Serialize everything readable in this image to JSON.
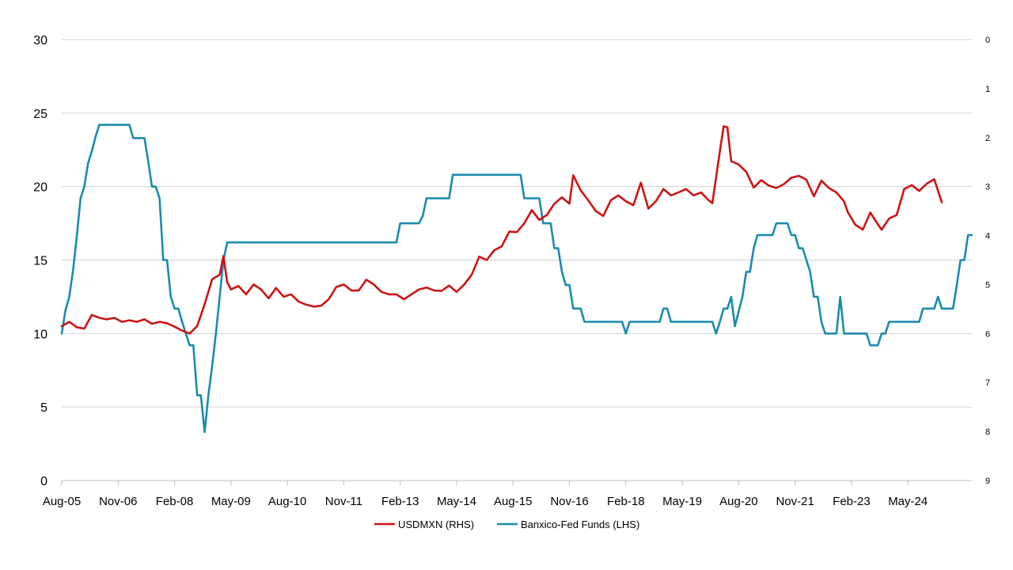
{
  "chart_data": {
    "type": "line",
    "title": "",
    "xlabel": "",
    "ylabel_left": "",
    "ylabel_right": "",
    "x_tick_labels": [
      "Aug-05",
      "Nov-06",
      "Feb-08",
      "May-09",
      "Aug-10",
      "Nov-11",
      "Feb-13",
      "May-14",
      "Aug-15",
      "Nov-16",
      "Feb-18",
      "May-19",
      "Aug-20",
      "Nov-21",
      "Feb-23",
      "May-24"
    ],
    "y_left": {
      "range": [
        0,
        30
      ],
      "ticks": [
        "0",
        "5",
        "10",
        "15",
        "20",
        "25",
        "30"
      ]
    },
    "y_right": {
      "range": [
        9,
        0
      ],
      "inverted": true,
      "ticks": [
        "0",
        "1",
        "2",
        "3",
        "4",
        "5",
        "6",
        "7",
        "8",
        "9"
      ]
    },
    "grid": true,
    "legend_position": "bottom",
    "series": [
      {
        "name": "USDMXN (RHS)",
        "axis": "right",
        "color": "#cc1414",
        "points": [
          [
            "Aug-05",
            5.85
          ],
          [
            "Oct-05",
            5.76
          ],
          [
            "Dec-05",
            5.87
          ],
          [
            "Feb-06",
            5.9
          ],
          [
            "Apr-06",
            5.62
          ],
          [
            "Jun-06",
            5.68
          ],
          [
            "Aug-06",
            5.71
          ],
          [
            "Oct-06",
            5.68
          ],
          [
            "Dec-06",
            5.76
          ],
          [
            "Feb-07",
            5.73
          ],
          [
            "Apr-07",
            5.76
          ],
          [
            "Jun-07",
            5.71
          ],
          [
            "Aug-07",
            5.8
          ],
          [
            "Oct-07",
            5.76
          ],
          [
            "Dec-07",
            5.79
          ],
          [
            "Feb-08",
            5.86
          ],
          [
            "Apr-08",
            5.94
          ],
          [
            "Jun-08",
            6.0
          ],
          [
            "Aug-08",
            5.85
          ],
          [
            "Oct-08",
            5.4
          ],
          [
            "Dec-08",
            4.89
          ],
          [
            "Feb-09",
            4.8
          ],
          [
            "Mar-09",
            4.42
          ],
          [
            "Apr-09",
            4.95
          ],
          [
            "May-09",
            5.1
          ],
          [
            "Jul-09",
            5.03
          ],
          [
            "Sep-09",
            5.2
          ],
          [
            "Nov-09",
            5.0
          ],
          [
            "Jan-10",
            5.1
          ],
          [
            "Mar-10",
            5.28
          ],
          [
            "May-10",
            5.07
          ],
          [
            "Jul-10",
            5.25
          ],
          [
            "Sep-10",
            5.2
          ],
          [
            "Nov-10",
            5.35
          ],
          [
            "Jan-11",
            5.41
          ],
          [
            "Mar-11",
            5.45
          ],
          [
            "May-11",
            5.43
          ],
          [
            "Jul-11",
            5.3
          ],
          [
            "Sep-11",
            5.05
          ],
          [
            "Nov-11",
            5.0
          ],
          [
            "Jan-12",
            5.12
          ],
          [
            "Mar-12",
            5.12
          ],
          [
            "May-12",
            4.9
          ],
          [
            "Jul-12",
            5.0
          ],
          [
            "Sep-12",
            5.15
          ],
          [
            "Nov-12",
            5.2
          ],
          [
            "Jan-13",
            5.2
          ],
          [
            "Mar-13",
            5.3
          ],
          [
            "May-13",
            5.2
          ],
          [
            "Jul-13",
            5.1
          ],
          [
            "Sep-13",
            5.06
          ],
          [
            "Nov-13",
            5.12
          ],
          [
            "Jan-14",
            5.13
          ],
          [
            "Mar-14",
            5.02
          ],
          [
            "May-14",
            5.15
          ],
          [
            "Jul-14",
            5.0
          ],
          [
            "Sep-14",
            4.8
          ],
          [
            "Nov-14",
            4.43
          ],
          [
            "Jan-15",
            4.5
          ],
          [
            "Mar-15",
            4.3
          ],
          [
            "May-15",
            4.22
          ],
          [
            "Jul-15",
            3.92
          ],
          [
            "Sep-15",
            3.93
          ],
          [
            "Nov-15",
            3.75
          ],
          [
            "Jan-16",
            3.48
          ],
          [
            "Mar-16",
            3.68
          ],
          [
            "May-16",
            3.58
          ],
          [
            "Jul-16",
            3.35
          ],
          [
            "Sep-16",
            3.22
          ],
          [
            "Nov-16",
            3.35
          ],
          [
            "Dec-16",
            2.77
          ],
          [
            "Feb-17",
            3.08
          ],
          [
            "Apr-17",
            3.28
          ],
          [
            "Jun-17",
            3.5
          ],
          [
            "Aug-17",
            3.6
          ],
          [
            "Oct-17",
            3.28
          ],
          [
            "Dec-17",
            3.18
          ],
          [
            "Feb-18",
            3.3
          ],
          [
            "Apr-18",
            3.38
          ],
          [
            "Jun-18",
            2.92
          ],
          [
            "Aug-18",
            3.45
          ],
          [
            "Oct-18",
            3.3
          ],
          [
            "Dec-18",
            3.05
          ],
          [
            "Feb-19",
            3.18
          ],
          [
            "Apr-19",
            3.12
          ],
          [
            "Jun-19",
            3.05
          ],
          [
            "Aug-19",
            3.18
          ],
          [
            "Oct-19",
            3.12
          ],
          [
            "Dec-19",
            3.28
          ],
          [
            "Jan-20",
            3.34
          ],
          [
            "Mar-20",
            2.28
          ],
          [
            "Apr-20",
            1.77
          ],
          [
            "May-20",
            1.79
          ],
          [
            "Jun-20",
            2.48
          ],
          [
            "Aug-20",
            2.55
          ],
          [
            "Oct-20",
            2.7
          ],
          [
            "Dec-20",
            3.02
          ],
          [
            "Feb-21",
            2.87
          ],
          [
            "Apr-21",
            2.98
          ],
          [
            "Jun-21",
            3.03
          ],
          [
            "Aug-21",
            2.95
          ],
          [
            "Oct-21",
            2.82
          ],
          [
            "Dec-21",
            2.78
          ],
          [
            "Feb-22",
            2.86
          ],
          [
            "Apr-22",
            3.2
          ],
          [
            "Jun-22",
            2.88
          ],
          [
            "Aug-22",
            3.03
          ],
          [
            "Oct-22",
            3.12
          ],
          [
            "Dec-22",
            3.3
          ],
          [
            "Jan-23",
            3.52
          ],
          [
            "Mar-23",
            3.78
          ],
          [
            "May-23",
            3.88
          ],
          [
            "Jul-23",
            3.53
          ],
          [
            "Sep-23",
            3.77
          ],
          [
            "Oct-23",
            3.88
          ],
          [
            "Dec-23",
            3.65
          ],
          [
            "Feb-24",
            3.58
          ],
          [
            "Apr-24",
            3.05
          ],
          [
            "Jun-24",
            2.97
          ],
          [
            "Aug-24",
            3.09
          ],
          [
            "Oct-24",
            2.94
          ],
          [
            "Dec-24",
            2.85
          ],
          [
            "Feb-25",
            3.32
          ]
        ]
      },
      {
        "name": "Banxico-Fed Funds (LHS)",
        "axis": "left",
        "color": "#1a8bb0",
        "points": [
          [
            "Aug-05",
            10.0
          ],
          [
            "Sep-05",
            11.6
          ],
          [
            "Oct-05",
            12.5
          ],
          [
            "Nov-05",
            14.3
          ],
          [
            "Dec-05",
            16.6
          ],
          [
            "Jan-06",
            19.2
          ],
          [
            "Feb-06",
            20.0
          ],
          [
            "Mar-06",
            21.6
          ],
          [
            "Apr-06",
            22.4
          ],
          [
            "May-06",
            23.4
          ],
          [
            "Jun-06",
            24.2
          ],
          [
            "Feb-07",
            24.2
          ],
          [
            "Mar-07",
            23.3
          ],
          [
            "Jun-07",
            23.3
          ],
          [
            "Jul-07",
            21.7
          ],
          [
            "Aug-07",
            20.0
          ],
          [
            "Sep-07",
            20.0
          ],
          [
            "Oct-07",
            19.2
          ],
          [
            "Nov-07",
            15.0
          ],
          [
            "Dec-07",
            15.0
          ],
          [
            "Jan-08",
            12.5
          ],
          [
            "Feb-08",
            11.7
          ],
          [
            "Mar-08",
            11.7
          ],
          [
            "Apr-08",
            10.8
          ],
          [
            "May-08",
            10.0
          ],
          [
            "Jun-08",
            9.2
          ],
          [
            "Jul-08",
            9.2
          ],
          [
            "Aug-08",
            5.8
          ],
          [
            "Sep-08",
            5.8
          ],
          [
            "Oct-08",
            3.3
          ],
          [
            "Nov-08",
            5.8
          ],
          [
            "Dec-08",
            7.8
          ],
          [
            "Jan-09",
            10.0
          ],
          [
            "Feb-09",
            12.5
          ],
          [
            "Mar-09",
            15.0
          ],
          [
            "Apr-09",
            16.2
          ],
          [
            "Jan-13",
            16.2
          ],
          [
            "Feb-13",
            17.5
          ],
          [
            "Jul-13",
            17.5
          ],
          [
            "Aug-13",
            18.0
          ],
          [
            "Sep-13",
            19.2
          ],
          [
            "Mar-14",
            19.2
          ],
          [
            "Apr-14",
            20.8
          ],
          [
            "Oct-15",
            20.8
          ],
          [
            "Nov-15",
            19.2
          ],
          [
            "Mar-16",
            19.2
          ],
          [
            "Apr-16",
            17.5
          ],
          [
            "Jun-16",
            17.5
          ],
          [
            "Jul-16",
            15.8
          ],
          [
            "Aug-16",
            15.8
          ],
          [
            "Sep-16",
            14.2
          ],
          [
            "Oct-16",
            13.3
          ],
          [
            "Nov-16",
            13.3
          ],
          [
            "Dec-16",
            11.7
          ],
          [
            "Feb-17",
            11.7
          ],
          [
            "Mar-17",
            10.8
          ],
          [
            "Jan-18",
            10.8
          ],
          [
            "Feb-18",
            10.0
          ],
          [
            "Mar-18",
            10.8
          ],
          [
            "Nov-18",
            10.8
          ],
          [
            "Dec-18",
            11.7
          ],
          [
            "Jan-19",
            11.7
          ],
          [
            "Feb-19",
            10.8
          ],
          [
            "Jan-20",
            10.8
          ],
          [
            "Feb-20",
            10.0
          ],
          [
            "Mar-20",
            10.8
          ],
          [
            "Apr-20",
            11.7
          ],
          [
            "May-20",
            11.7
          ],
          [
            "Jun-20",
            12.5
          ],
          [
            "Jul-20",
            10.5
          ],
          [
            "Sep-20",
            12.5
          ],
          [
            "Oct-20",
            14.2
          ],
          [
            "Nov-20",
            14.2
          ],
          [
            "Dec-20",
            15.8
          ],
          [
            "Jan-21",
            16.7
          ],
          [
            "May-21",
            16.7
          ],
          [
            "Jun-21",
            17.5
          ],
          [
            "Sep-21",
            17.5
          ],
          [
            "Oct-21",
            16.7
          ],
          [
            "Nov-21",
            16.7
          ],
          [
            "Dec-21",
            15.8
          ],
          [
            "Jan-22",
            15.8
          ],
          [
            "Feb-22",
            15.0
          ],
          [
            "Mar-22",
            14.2
          ],
          [
            "Apr-22",
            12.5
          ],
          [
            "May-22",
            12.5
          ],
          [
            "Jun-22",
            10.8
          ],
          [
            "Jul-22",
            10.0
          ],
          [
            "Oct-22",
            10.0
          ],
          [
            "Nov-22",
            12.5
          ],
          [
            "Dec-22",
            10.0
          ],
          [
            "Jun-23",
            10.0
          ],
          [
            "Jul-23",
            9.2
          ],
          [
            "Sep-23",
            9.2
          ],
          [
            "Oct-23",
            10.0
          ],
          [
            "Nov-23",
            10.0
          ],
          [
            "Dec-23",
            10.8
          ],
          [
            "Aug-24",
            10.8
          ],
          [
            "Sep-24",
            11.7
          ],
          [
            "Dec-24",
            11.7
          ],
          [
            "Jan-25",
            12.5
          ],
          [
            "Feb-25",
            11.7
          ],
          [
            "May-25",
            11.7
          ],
          [
            "Jun-25",
            13.3
          ],
          [
            "Jul-25",
            15.0
          ],
          [
            "Aug-25",
            15.0
          ],
          [
            "Sep-25",
            16.7
          ],
          [
            "Oct-25",
            16.7
          ]
        ]
      }
    ]
  },
  "colors": {
    "grid": "#d0d0d0",
    "axis": "#bfbfbf",
    "usdmxn": "#cc1414",
    "banxico": "#1a8bb0"
  }
}
